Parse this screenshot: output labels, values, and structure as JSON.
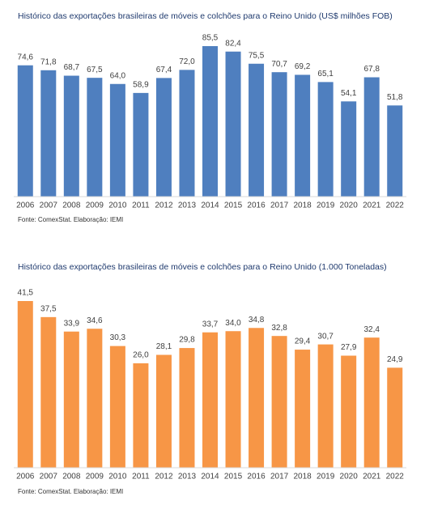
{
  "chart_data": [
    {
      "type": "bar",
      "title": "Histórico das exportações brasileiras de móveis e colchões para o Reino Unido (US$ milhões FOB)",
      "categories": [
        "2006",
        "2007",
        "2008",
        "2009",
        "2010",
        "2011",
        "2012",
        "2013",
        "2014",
        "2015",
        "2016",
        "2017",
        "2018",
        "2019",
        "2020",
        "2021",
        "2022"
      ],
      "values": [
        74.6,
        71.8,
        68.7,
        67.5,
        64.0,
        58.9,
        67.4,
        72.0,
        85.5,
        82.4,
        75.5,
        70.7,
        69.2,
        65.1,
        54.1,
        67.8,
        51.8
      ],
      "value_labels": [
        "74,6",
        "71,8",
        "68,7",
        "67,5",
        "64,0",
        "58,9",
        "67,4",
        "72,0",
        "85,5",
        "82,4",
        "75,5",
        "70,7",
        "69,2",
        "65,1",
        "54,1",
        "67,8",
        "51,8"
      ],
      "color": "#4f7fbf",
      "source": "Fonte: ComexStat. Elaboração: IEMI"
    },
    {
      "type": "bar",
      "title": "Histórico das exportações brasileiras de móveis e colchões para o Reino Unido (1.000 Toneladas)",
      "categories": [
        "2006",
        "2007",
        "2008",
        "2009",
        "2010",
        "2011",
        "2012",
        "2013",
        "2014",
        "2015",
        "2016",
        "2017",
        "2018",
        "2019",
        "2020",
        "2021",
        "2022"
      ],
      "values": [
        41.5,
        37.5,
        33.9,
        34.6,
        30.3,
        26.0,
        28.1,
        29.8,
        33.7,
        34.0,
        34.8,
        32.8,
        29.4,
        30.7,
        27.9,
        32.4,
        24.9
      ],
      "value_labels": [
        "41,5",
        "37,5",
        "33,9",
        "34,6",
        "30,3",
        "26,0",
        "28,1",
        "29,8",
        "33,7",
        "34,0",
        "34,8",
        "32,8",
        "29,4",
        "30,7",
        "27,9",
        "32,4",
        "24,9"
      ],
      "color": "#f79646",
      "source": "Fonte: ComexStat. Elaboração: IEMI"
    }
  ]
}
